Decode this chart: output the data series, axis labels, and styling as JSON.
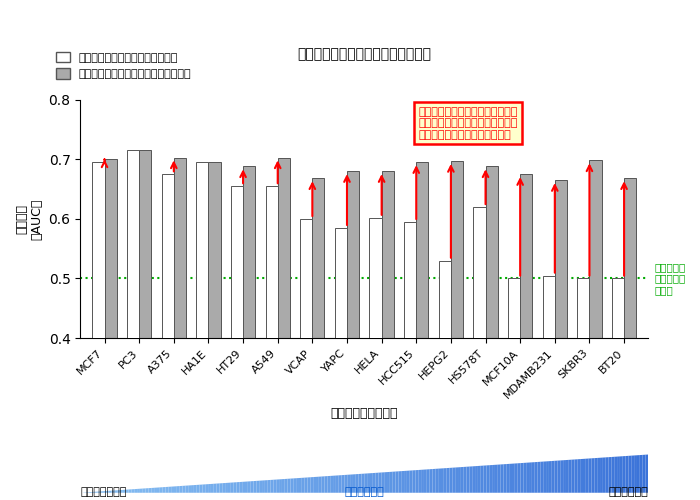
{
  "title": "薬物の適用可能疾患予測の精度評価",
  "categories": [
    "MCF7",
    "PC3",
    "A375",
    "HA1E",
    "HT29",
    "A549",
    "VCAP",
    "YAPC",
    "HELA",
    "HCC515",
    "HEPG2",
    "HS578T",
    "MCF10A",
    "MDAMB231",
    "SKBR3",
    "BT20"
  ],
  "white_bars": [
    0.695,
    0.715,
    0.675,
    0.695,
    0.655,
    0.655,
    0.6,
    0.585,
    0.602,
    0.595,
    0.53,
    0.62,
    0.5,
    0.505,
    0.5,
    0.5
  ],
  "gray_bars": [
    0.7,
    0.715,
    0.703,
    0.695,
    0.688,
    0.703,
    0.668,
    0.68,
    0.68,
    0.695,
    0.697,
    0.688,
    0.675,
    0.665,
    0.698,
    0.668
  ],
  "xlabel": "ヒト由来細胞の名前",
  "ylabel": "予測精度\n（AUC）",
  "ylim": [
    0.4,
    0.8
  ],
  "yticks": [
    0.4,
    0.5,
    0.6,
    0.7,
    0.8
  ],
  "random_line": 0.5,
  "legend_white": "欠損値を含むデータを用いた場合",
  "legend_gray": "欠損値を予測したデータを用いた場合",
  "annotation_text": "特に欠損値が多い細胞について、\n欠損値を補完することによる適用\n可能疾患予測性能の向上が顕著",
  "random_label": "ランダムな\n予測の場合\nの精度",
  "bottom_left": "欠損値が少ない",
  "bottom_center": "欠損値の割合",
  "bottom_right": "欠損値が多い",
  "bar_width": 0.35,
  "ybase": 0.4,
  "white_color": "#FFFFFF",
  "gray_color": "#AAAAAA",
  "edge_color": "#555555",
  "arrow_color": "#FF0000",
  "random_line_color": "#00AA00",
  "annotation_box_color": "#FF0000",
  "annotation_bg_color": "#FFFFCC"
}
